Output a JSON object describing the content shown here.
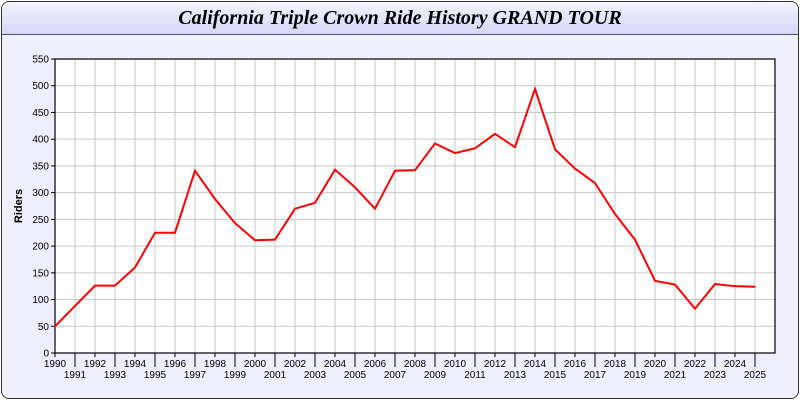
{
  "chart_data": {
    "type": "line",
    "title": "California Triple Crown Ride History GRAND TOUR",
    "xlabel": "",
    "ylabel": "Riders",
    "ylim": [
      0,
      550
    ],
    "yticks": [
      0,
      50,
      100,
      150,
      200,
      250,
      300,
      350,
      400,
      450,
      500,
      550
    ],
    "grid": true,
    "line_color": "#ff0000",
    "categories": [
      "1990",
      "1991",
      "1992",
      "1993",
      "1994",
      "1995",
      "1996",
      "1997",
      "1998",
      "1999",
      "2000",
      "2001",
      "2002",
      "2003",
      "2004",
      "2005",
      "2006",
      "2007",
      "2008",
      "2009",
      "2010",
      "2011",
      "2012",
      "2013",
      "2014",
      "2015",
      "2016",
      "2017",
      "2018",
      "2019",
      "2020",
      "2021",
      "2022",
      "2023",
      "2024",
      "2025"
    ],
    "values": [
      50,
      88,
      126,
      126,
      160,
      225,
      225,
      341,
      288,
      243,
      211,
      212,
      270,
      281,
      343,
      310,
      270,
      341,
      342,
      392,
      374,
      383,
      410,
      385,
      494,
      381,
      345,
      318,
      260,
      212,
      135,
      128,
      83,
      129,
      125,
      124
    ]
  }
}
